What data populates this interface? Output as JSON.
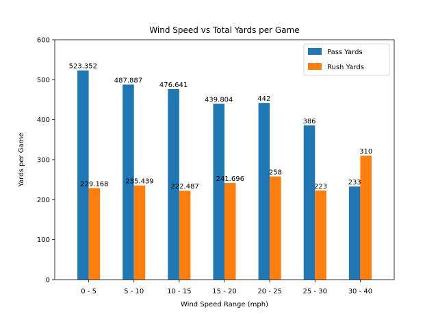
{
  "chart_data": {
    "type": "bar",
    "title": "Wind Speed vs Total Yards per Game",
    "xlabel": "Wind Speed Range (mph)",
    "ylabel": "Yards per Game",
    "categories": [
      "0 - 5",
      "5 - 10",
      "10 - 15",
      "15 - 20",
      "20 - 25",
      "25 - 30",
      "30 - 40"
    ],
    "series": [
      {
        "name": "Pass Yards",
        "color": "#1f77b4",
        "values": [
          523.352,
          487.887,
          476.641,
          439.804,
          442,
          386,
          233
        ],
        "labels": [
          "523.352",
          "487.887",
          "476.641",
          "439.804",
          "442",
          "386",
          "233"
        ]
      },
      {
        "name": "Rush Yards",
        "color": "#ff7f0e",
        "values": [
          229.168,
          235.439,
          222.487,
          241.696,
          258,
          223,
          310
        ],
        "labels": [
          "229.168",
          "235.439",
          "222.487",
          "241.696",
          "258",
          "223",
          "310"
        ]
      }
    ],
    "ylim": [
      0,
      600
    ],
    "yticks": [
      0,
      100,
      200,
      300,
      400,
      500,
      600
    ],
    "ytick_labels": [
      "0",
      "100",
      "200",
      "300",
      "400",
      "500",
      "600"
    ],
    "grid": false,
    "legend_position": "top-right"
  }
}
